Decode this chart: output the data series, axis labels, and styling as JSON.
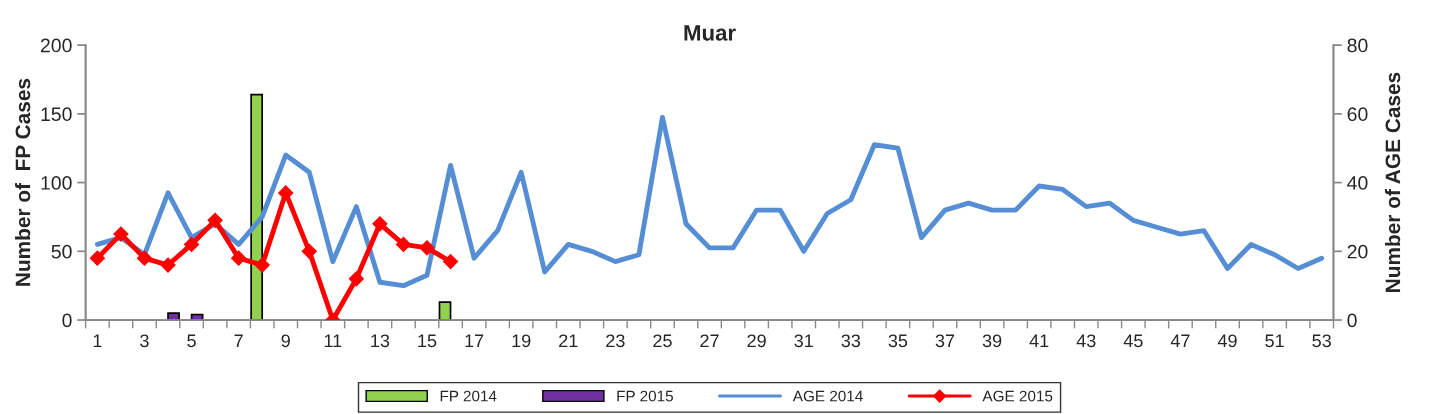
{
  "chart_data": {
    "type": "bar",
    "title": "Muar",
    "ylabel": "Number of  FP Cases",
    "y2label": "Number of AGE Cases",
    "categories": [
      "1",
      null,
      "3",
      null,
      "5",
      null,
      "7",
      null,
      "9",
      null,
      "11",
      null,
      "13",
      null,
      "15",
      null,
      "17",
      null,
      "19",
      null,
      "21",
      null,
      "23",
      null,
      "25",
      null,
      "27",
      null,
      "29",
      null,
      "31",
      null,
      "33",
      null,
      "35",
      null,
      "37",
      null,
      "39",
      null,
      "41",
      null,
      "43",
      null,
      "45",
      null,
      "47",
      null,
      "49",
      null,
      "51",
      null,
      "53"
    ],
    "series": [
      {
        "name": "FP 2014",
        "color": "#92d050",
        "values": [
          null,
          null,
          null,
          null,
          null,
          null,
          null,
          164,
          null,
          null,
          null,
          null,
          null,
          null,
          null,
          13,
          null,
          null,
          null,
          null,
          null,
          null,
          null,
          null,
          null,
          null,
          null,
          null,
          null,
          null,
          null,
          null,
          null,
          null,
          null,
          null,
          null,
          null,
          null,
          null,
          null,
          null,
          null,
          null,
          null,
          null,
          null,
          null,
          null,
          null,
          null,
          null,
          null
        ]
      },
      {
        "name": "FP 2015",
        "color": "#7030a0",
        "values": [
          null,
          null,
          null,
          5,
          4,
          null,
          null,
          null,
          null,
          null,
          null,
          null,
          null,
          null,
          null,
          null,
          null,
          null,
          null,
          null,
          null,
          null,
          null,
          null,
          null,
          null,
          null,
          null,
          null,
          null,
          null,
          null,
          null,
          null,
          null,
          null,
          null,
          null,
          null,
          null,
          null,
          null,
          null,
          null,
          null,
          null,
          null,
          null,
          null,
          null,
          null,
          null,
          null
        ]
      },
      {
        "name": "AGE 2014",
        "type": "line",
        "axis": "y2",
        "color": "#558ed5",
        "marker": "none",
        "values": [
          22,
          24,
          19,
          37,
          24,
          28,
          22,
          30,
          48,
          43,
          17,
          33,
          11,
          10,
          13,
          45,
          18,
          26,
          43,
          14,
          22,
          20,
          17,
          19,
          59,
          28,
          21,
          21,
          32,
          32,
          20,
          31,
          35,
          51,
          50,
          24,
          32,
          34,
          32,
          32,
          39,
          38,
          33,
          34,
          29,
          27,
          25,
          26,
          15,
          22,
          19,
          15,
          18
        ]
      },
      {
        "name": "AGE 2015",
        "type": "line",
        "axis": "y2",
        "color": "#ff0000",
        "marker": "diamond",
        "values": [
          18,
          25,
          18,
          16,
          22,
          29,
          18,
          16,
          37,
          20,
          0,
          12,
          28,
          22,
          21,
          17,
          null,
          null,
          null,
          null,
          null,
          null,
          null,
          null,
          null,
          null,
          null,
          null,
          null,
          null,
          null,
          null,
          null,
          null,
          null,
          null,
          null,
          null,
          null,
          null,
          null,
          null,
          null,
          null,
          null,
          null,
          null,
          null,
          null,
          null,
          null,
          null,
          null
        ]
      }
    ],
    "ylim": [
      0,
      200
    ],
    "yticks": [
      0,
      50,
      100,
      150,
      200
    ],
    "y2lim": [
      0,
      80
    ],
    "y2ticks": [
      0,
      20,
      40,
      60,
      80
    ],
    "grid": false,
    "legend": "bottom"
  }
}
